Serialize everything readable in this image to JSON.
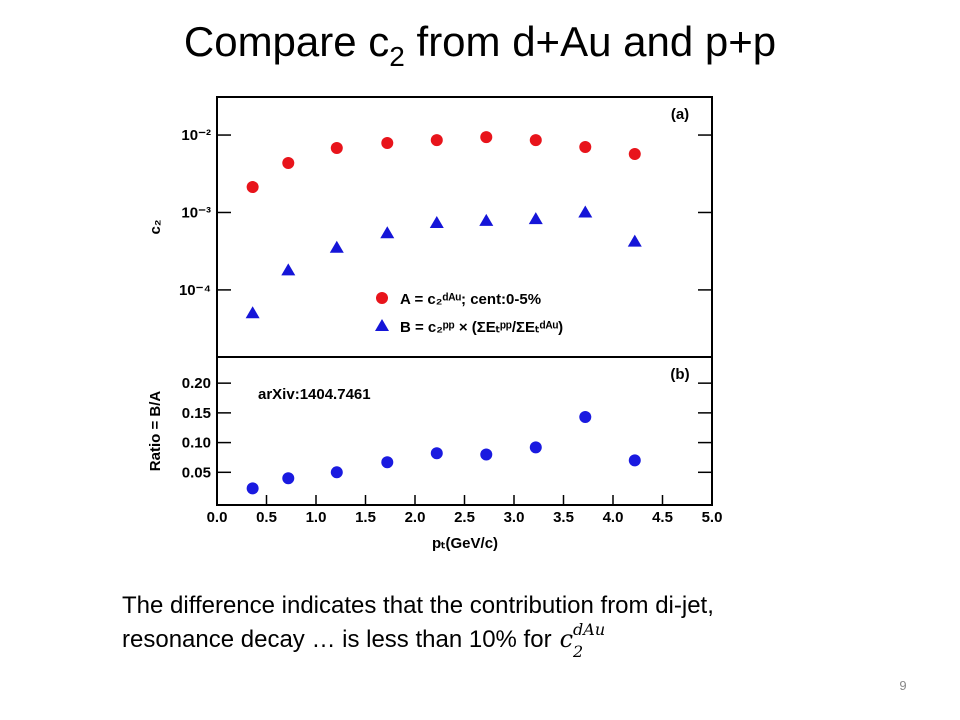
{
  "slide": {
    "title": {
      "pre": "Compare c",
      "sub": "2",
      "post": " from d+Au and p+p"
    },
    "body": {
      "line1": "The difference indicates that the contribution from di-jet,",
      "line2": "resonance decay … is less than 10% for",
      "formula": {
        "base": "c",
        "sub": "2",
        "sup": "dAu"
      }
    },
    "page_number": "9"
  },
  "chart_data": [
    {
      "type": "scatter",
      "panel_label": "(a)",
      "ylabel": "c₂",
      "log_y": true,
      "xlim": [
        0,
        5
      ],
      "ylim": [
        1.36e-05,
        0.031
      ],
      "yticks": [
        {
          "value": 0.01,
          "label": "10⁻²"
        },
        {
          "value": 0.001,
          "label": "10⁻³"
        },
        {
          "value": 0.0001,
          "label": "10⁻⁴"
        }
      ],
      "x": [
        0.36,
        0.72,
        1.21,
        1.72,
        2.22,
        2.72,
        3.22,
        3.72,
        4.22
      ],
      "series": [
        {
          "name": "A = c₂ᵈᴬᵘ; cent:0-5%",
          "color": "#e8141b",
          "marker": "circle",
          "values": [
            0.00213,
            0.00435,
            0.0068,
            0.0079,
            0.0086,
            0.0094,
            0.0086,
            0.007,
            0.0057
          ]
        },
        {
          "name": "B = c₂ᵖᵖ × (ΣEₜᵖᵖ/ΣEₜᵈᴬᵘ)",
          "color": "#1515d8",
          "marker": "triangle",
          "values": [
            5e-05,
            0.000179,
            0.00035,
            0.00054,
            0.00073,
            0.00078,
            0.00082,
            0.001,
            0.00042
          ]
        }
      ]
    },
    {
      "type": "scatter",
      "panel_label": "(b)",
      "ylabel": "Ratio = B/A",
      "xlabel": "pₜ(GeV/c)",
      "annotation": "arXiv:1404.7461",
      "log_y": false,
      "xlim": [
        0,
        5
      ],
      "ylim": [
        -0.005,
        0.244
      ],
      "xticks": [
        {
          "value": 0,
          "label": "0.0"
        },
        0.5,
        {
          "value": 1,
          "label": "1.0"
        },
        1.5,
        {
          "value": 2,
          "label": "2.0"
        },
        2.5,
        {
          "value": 3,
          "label": "3.0"
        },
        3.5,
        {
          "value": 4,
          "label": "4.0"
        },
        4.5,
        {
          "value": 5,
          "label": "5.0"
        }
      ],
      "yticks": [
        {
          "value": 0.2,
          "label": "0.20"
        },
        0.15,
        {
          "value": 0.1,
          "label": "0.10"
        },
        0.05
      ],
      "x": [
        0.36,
        0.72,
        1.21,
        1.72,
        2.22,
        2.72,
        3.22,
        3.72,
        4.22
      ],
      "series": [
        {
          "color": "#1a1ae0",
          "marker": "circle",
          "values": [
            0.023,
            0.04,
            0.05,
            0.067,
            0.082,
            0.08,
            0.092,
            0.143,
            0.07
          ]
        }
      ]
    }
  ]
}
